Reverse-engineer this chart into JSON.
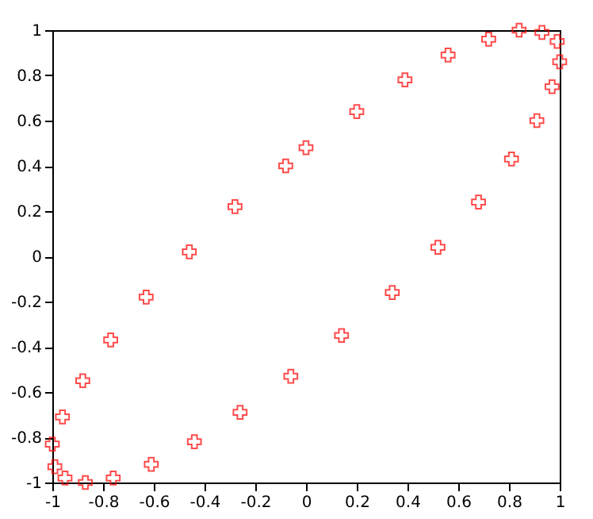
{
  "chart_data": {
    "type": "scatter",
    "marker": "cross",
    "grid": false,
    "xlim": [
      -1,
      1
    ],
    "ylim": [
      -1,
      1
    ],
    "xticks": [
      -1,
      -0.8,
      -0.6,
      -0.4,
      -0.2,
      0,
      0.2,
      0.4,
      0.6,
      0.8,
      1
    ],
    "yticks": [
      -1,
      -0.8,
      -0.6,
      -0.4,
      -0.2,
      0,
      0.2,
      0.4,
      0.6,
      0.8,
      1
    ],
    "series": [
      {
        "color": "#ff0000",
        "x": [
          0,
          0.2,
          0.39,
          0.56,
          0.72,
          0.84,
          0.93,
          0.99,
          1.0,
          0.97,
          0.91,
          0.81,
          0.68,
          0.52,
          0.34,
          0.14,
          -0.06,
          -0.26,
          -0.44,
          -0.61,
          -0.76,
          -0.87,
          -0.95,
          -0.99,
          -1.0,
          -0.96,
          -0.88,
          -0.77,
          -0.63,
          -0.46,
          -0.28,
          -0.08
        ],
        "values": [
          0.48,
          0.64,
          0.78,
          0.89,
          0.96,
          1.0,
          0.99,
          0.95,
          0.86,
          0.75,
          0.6,
          0.43,
          0.24,
          0.04,
          -0.16,
          -0.35,
          -0.53,
          -0.69,
          -0.82,
          -0.92,
          -0.98,
          -1.0,
          -0.98,
          -0.93,
          -0.83,
          -0.71,
          -0.55,
          -0.37,
          -0.18,
          0.02,
          0.22,
          0.4
        ]
      }
    ]
  }
}
